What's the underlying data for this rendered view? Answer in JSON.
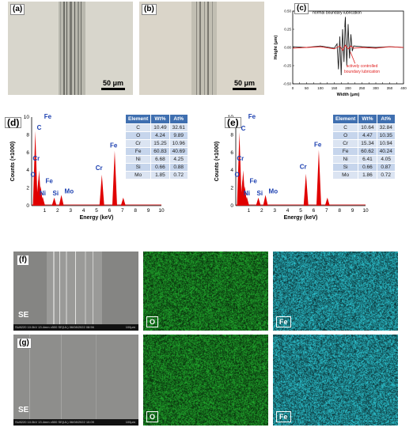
{
  "panels": {
    "a": {
      "label": "(a)",
      "scalebar": "50 μm"
    },
    "b": {
      "label": "(b)",
      "scalebar": "50 μm"
    },
    "c": {
      "label": "(c)"
    },
    "d": {
      "label": "(d)"
    },
    "e": {
      "label": "(e)"
    },
    "f": {
      "label": "(f)"
    },
    "g": {
      "label": "(g)"
    }
  },
  "chart_data": [
    {
      "type": "line",
      "panel": "c",
      "xlabel": "Width (μm)",
      "ylabel": "Height (μm)",
      "xlim": [
        0,
        400
      ],
      "ylim": [
        -0.5,
        0.5
      ],
      "xticks": [
        "0",
        "25",
        "50",
        "75",
        "100",
        "125",
        "150",
        "175",
        "200",
        "225",
        "250",
        "275",
        "300",
        "325",
        "350",
        "375",
        "400"
      ],
      "yticks": [
        "0.50",
        "0.25",
        "0.00",
        "-0.25",
        "-0.50"
      ],
      "annotations": [
        "normal boundary lubrication",
        "actively controlled boundary lubrication"
      ],
      "series": [
        {
          "name": "normal boundary lubrication",
          "color": "#222222",
          "x": [
            0,
            50,
            100,
            150,
            160,
            165,
            170,
            175,
            180,
            185,
            190,
            195,
            200,
            205,
            210,
            215,
            220,
            250,
            300,
            350,
            400
          ],
          "y": [
            0.01,
            0.0,
            0.02,
            -0.01,
            0.05,
            -0.3,
            0.15,
            -0.38,
            0.25,
            -0.2,
            0.4,
            -0.25,
            0.32,
            -0.15,
            0.18,
            -0.05,
            0.02,
            0.01,
            0.0,
            0.01,
            0.0
          ]
        },
        {
          "name": "actively controlled boundary lubrication",
          "color": "#e02020",
          "x": [
            0,
            50,
            100,
            150,
            170,
            180,
            190,
            200,
            210,
            220,
            250,
            300,
            350,
            400
          ],
          "y": [
            -0.01,
            0.0,
            0.01,
            -0.02,
            0.02,
            -0.04,
            0.03,
            -0.02,
            0.02,
            -0.01,
            0.0,
            -0.01,
            0.01,
            0.0
          ]
        }
      ]
    },
    {
      "type": "bar",
      "panel": "d",
      "xlabel": "Energy (keV)",
      "ylabel": "Counts (×1000)",
      "xlim": [
        0,
        10
      ],
      "ylim": [
        0,
        10
      ],
      "xticks": [
        "1",
        "2",
        "3",
        "4",
        "5",
        "6",
        "7",
        "8",
        "9",
        "10"
      ],
      "yticks": [
        "0",
        "2",
        "4",
        "6",
        "8",
        "10"
      ],
      "peaks": [
        {
          "label": "C",
          "x": 0.28,
          "y": 8.4
        },
        {
          "label": "O",
          "x": 0.52,
          "y": 3.0
        },
        {
          "label": "Cr",
          "x": 0.57,
          "y": 4.0
        },
        {
          "label": "Fe",
          "x": 0.7,
          "y": 2.2
        },
        {
          "label": "Ni",
          "x": 0.85,
          "y": 1.0
        },
        {
          "label": "Si",
          "x": 1.74,
          "y": 0.9
        },
        {
          "label": "Mo",
          "x": 2.29,
          "y": 1.2
        },
        {
          "label": "Cr",
          "x": 5.41,
          "y": 3.5
        },
        {
          "label": "Fe",
          "x": 6.4,
          "y": 6.2
        },
        {
          "label": "Fe",
          "x": 7.06,
          "y": 0.9
        }
      ]
    },
    {
      "type": "bar",
      "panel": "e",
      "xlabel": "Energy (keV)",
      "ylabel": "Counts (×1000)",
      "xlim": [
        0,
        10
      ],
      "ylim": [
        0,
        10
      ],
      "xticks": [
        "1",
        "2",
        "3",
        "4",
        "5",
        "6",
        "7",
        "8",
        "9",
        "10"
      ],
      "yticks": [
        "0",
        "2",
        "4",
        "6",
        "8",
        "10"
      ],
      "peaks": [
        {
          "label": "C",
          "x": 0.28,
          "y": 8.3
        },
        {
          "label": "O",
          "x": 0.52,
          "y": 3.0
        },
        {
          "label": "Cr",
          "x": 0.57,
          "y": 4.0
        },
        {
          "label": "Fe",
          "x": 0.7,
          "y": 2.2
        },
        {
          "label": "Ni",
          "x": 0.85,
          "y": 1.0
        },
        {
          "label": "Si",
          "x": 1.74,
          "y": 0.9
        },
        {
          "label": "Mo",
          "x": 2.29,
          "y": 1.2
        },
        {
          "label": "Cr",
          "x": 5.41,
          "y": 3.6
        },
        {
          "label": "Fe",
          "x": 6.4,
          "y": 6.3
        },
        {
          "label": "Fe",
          "x": 7.06,
          "y": 0.9
        }
      ]
    }
  ],
  "tables": {
    "d": {
      "headers": [
        "Element",
        "Wt%",
        "At%"
      ],
      "rows": [
        [
          "C",
          "10.49",
          "32.61"
        ],
        [
          "O",
          "4.24",
          "9.89"
        ],
        [
          "Cr",
          "15.25",
          "10.96"
        ],
        [
          "Fe",
          "60.83",
          "40.69"
        ],
        [
          "Ni",
          "6.68",
          "4.25"
        ],
        [
          "Si",
          "0.66",
          "0.88"
        ],
        [
          "Mo",
          "1.85",
          "0.72"
        ]
      ]
    },
    "e": {
      "headers": [
        "Element",
        "Wt%",
        "At%"
      ],
      "rows": [
        [
          "C",
          "10.64",
          "32.84"
        ],
        [
          "O",
          "4.47",
          "10.35"
        ],
        [
          "Cr",
          "15.34",
          "10.94"
        ],
        [
          "Fe",
          "60.62",
          "40.24"
        ],
        [
          "Ni",
          "6.41",
          "4.05"
        ],
        [
          "Si",
          "0.66",
          "0.87"
        ],
        [
          "Mo",
          "1.86",
          "0.72"
        ]
      ]
    }
  },
  "sem": {
    "f": {
      "se": "SE",
      "footer": "SU8220 10.0kV 13.4mm x500 SE(UL) 06/08/2022 08:56",
      "scale": "100μm",
      "o": "O",
      "fe": "Fe"
    },
    "g": {
      "se": "SE",
      "footer": "SU8220 10.0kV 13.4mm x500 SE(UL) 06/08/2022 10:09",
      "scale": "100μm",
      "o": "O",
      "fe": "Fe"
    }
  },
  "colors": {
    "o_map": "#1f9e2a",
    "fe_map": "#2ab8c4",
    "peak": "#e00000",
    "label": "#1b3fb0"
  }
}
